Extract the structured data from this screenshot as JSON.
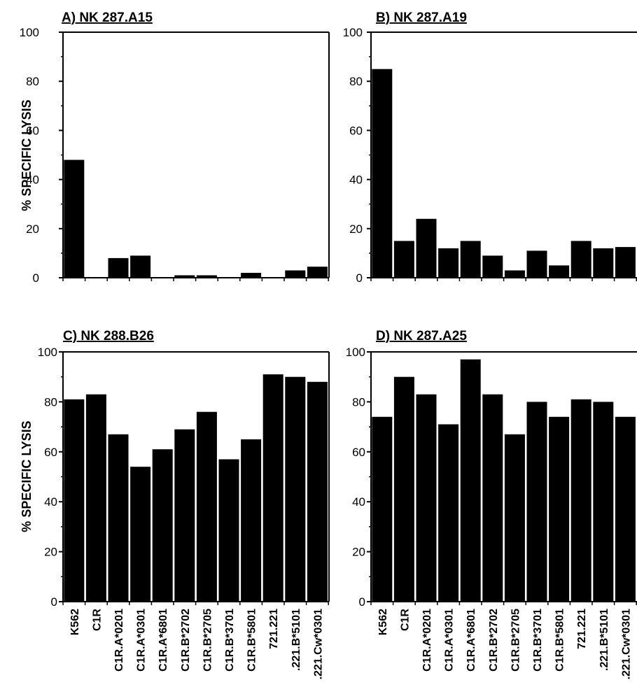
{
  "figure": {
    "ylabel": "% SPECIFIC LYSIS"
  },
  "chart_data": [
    {
      "type": "bar",
      "title": "A) NK 287.A15",
      "ylabel": "% SPECIFIC LYSIS",
      "ylim": [
        0,
        100
      ],
      "yticks": [
        0,
        20,
        40,
        60,
        80,
        100
      ],
      "categories": [
        "K562",
        "C1R",
        "C1R.A*0201",
        "C1R.A*0301",
        "C1R.A*6801",
        "C1R.B*2702",
        "C1R.B*2705",
        "C1R.B*3701",
        "C1R.B*5801",
        "721.221",
        ".221.B*5101",
        ".221.Cw*0301"
      ],
      "values": [
        48,
        0,
        8,
        9,
        0,
        1,
        1,
        0,
        2,
        0,
        3,
        4.5
      ]
    },
    {
      "type": "bar",
      "title": "B) NK 287.A19",
      "ylabel": "",
      "ylim": [
        0,
        100
      ],
      "yticks": [
        0,
        20,
        40,
        60,
        80,
        100
      ],
      "categories": [
        "K562",
        "C1R",
        "C1R.A*0201",
        "C1R.A*0301",
        "C1R.A*6801",
        "C1R.B*2702",
        "C1R.B*2705",
        "C1R.B*3701",
        "C1R.B*5801",
        "721.221",
        ".221.B*5101",
        ".221.Cw*0301"
      ],
      "values": [
        85,
        15,
        24,
        12,
        15,
        9,
        3,
        11,
        5,
        15,
        12,
        12.5
      ]
    },
    {
      "type": "bar",
      "title": "C) NK 288.B26",
      "ylabel": "% SPECIFIC LYSIS",
      "ylim": [
        0,
        100
      ],
      "yticks": [
        0,
        20,
        40,
        60,
        80,
        100
      ],
      "categories": [
        "K562",
        "C1R",
        "C1R.A*0201",
        "C1R.A*0301",
        "C1R.A*6801",
        "C1R.B*2702",
        "C1R.B*2705",
        "C1R.B*3701",
        "C1R.B*5801",
        "721.221",
        ".221.B*5101",
        ".221.Cw*0301"
      ],
      "values": [
        81,
        83,
        67,
        54,
        61,
        69,
        76,
        57,
        65,
        91,
        90,
        88
      ]
    },
    {
      "type": "bar",
      "title": "D) NK 287.A25",
      "ylabel": "",
      "ylim": [
        0,
        100
      ],
      "yticks": [
        0,
        20,
        40,
        60,
        80,
        100
      ],
      "categories": [
        "K562",
        "C1R",
        "C1R.A*0201",
        "C1R.A*0301",
        "C1R.A*6801",
        "C1R.B*2702",
        "C1R.B*2705",
        "C1R.B*3701",
        "C1R.B*5801",
        "721.221",
        ".221.B*5101",
        ".221.Cw*0301"
      ],
      "values": [
        74,
        90,
        83,
        71,
        97,
        83,
        67,
        80,
        74,
        81,
        80,
        74
      ]
    }
  ]
}
